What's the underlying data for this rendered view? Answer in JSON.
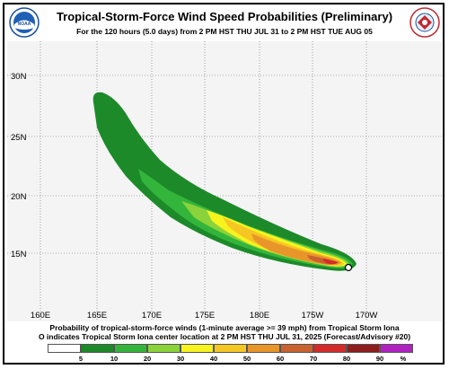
{
  "header": {
    "title": "Tropical-Storm-Force Wind Speed Probabilities (Preliminary)",
    "subtitle": "For the 120 hours (5.0 days) from 2 PM HST THU JUL 31 to 2 PM HST TUE AUG 05"
  },
  "logos": {
    "left_icon": "noaa-logo",
    "right_icon": "national-weather-service-logo"
  },
  "map": {
    "lat_labels": [
      "30N",
      "25N",
      "20N",
      "15N"
    ],
    "lon_labels": [
      "160E",
      "165E",
      "170E",
      "175E",
      "180E",
      "175W",
      "170W"
    ],
    "storm_center_icon": "open-circle",
    "background": "#f4f4f4",
    "gridline_color": "#6a6a6a"
  },
  "caption": {
    "line1": "Probability of tropical-storm-force winds (1-minute average >= 39 mph) from Tropical Storm Iona",
    "line2": "O indicates Tropical Storm Iona center location at 2 PM HST THU JUL 31, 2025 (Forecast/Advisory #20)"
  },
  "legend": {
    "items": [
      {
        "label": "5",
        "color": "#ffffff"
      },
      {
        "label": "10",
        "color": "#1d8a2a"
      },
      {
        "label": "20",
        "color": "#33b53c"
      },
      {
        "label": "30",
        "color": "#8ad33a"
      },
      {
        "label": "40",
        "color": "#f7f31e"
      },
      {
        "label": "50",
        "color": "#f6c722"
      },
      {
        "label": "60",
        "color": "#e8962a"
      },
      {
        "label": "70",
        "color": "#c9622f"
      },
      {
        "label": "80",
        "color": "#d42a2a"
      },
      {
        "label": "90",
        "color": "#8e1d1d"
      },
      {
        "label": "%",
        "color": "#b021c2"
      }
    ]
  }
}
